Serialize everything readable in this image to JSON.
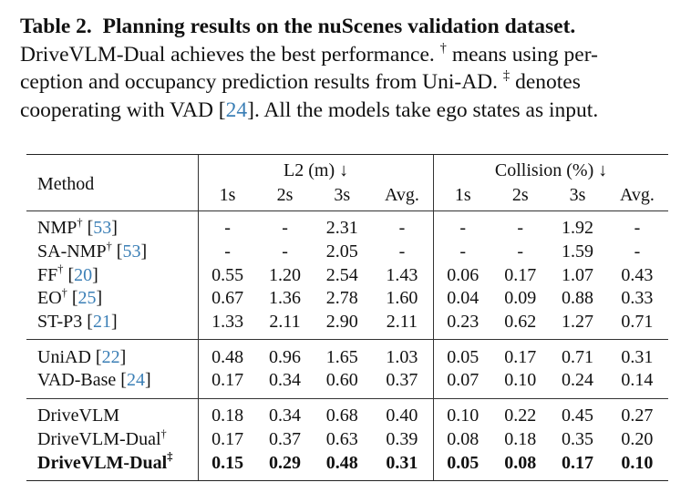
{
  "caption": {
    "label": "Table 2.",
    "title": "Planning results on the nuScenes validation dataset.",
    "line2_a": "DriveVLM-Dual achieves the best performance.",
    "dagger": "†",
    "line2_b": "means using per-",
    "line3_a": "ception and occupancy prediction results from Uni-AD.",
    "ddagger": "‡",
    "line3_b": "denotes",
    "line4_a": "cooperating with VAD [",
    "line4_ref": "24",
    "line4_b": "]. All the models take ego states as input."
  },
  "table": {
    "method_header": "Method",
    "group1": "L2 (m) ↓",
    "group2": "Collision (%) ↓",
    "subcols": [
      "1s",
      "2s",
      "3s",
      "Avg.",
      "1s",
      "2s",
      "3s",
      "Avg."
    ],
    "rows": [
      {
        "name": "NMP",
        "sup": "†",
        "ref": "53",
        "vals": [
          "-",
          "-",
          "2.31",
          "-",
          "-",
          "-",
          "1.92",
          "-"
        ]
      },
      {
        "name": "SA-NMP",
        "sup": "†",
        "ref": "53",
        "vals": [
          "-",
          "-",
          "2.05",
          "-",
          "-",
          "-",
          "1.59",
          "-"
        ]
      },
      {
        "name": "FF",
        "sup": "†",
        "ref": "20",
        "vals": [
          "0.55",
          "1.20",
          "2.54",
          "1.43",
          "0.06",
          "0.17",
          "1.07",
          "0.43"
        ]
      },
      {
        "name": "EO",
        "sup": "†",
        "ref": "25",
        "vals": [
          "0.67",
          "1.36",
          "2.78",
          "1.60",
          "0.04",
          "0.09",
          "0.88",
          "0.33"
        ]
      },
      {
        "name": "ST-P3",
        "sup": "",
        "ref": "21",
        "vals": [
          "1.33",
          "2.11",
          "2.90",
          "2.11",
          "0.23",
          "0.62",
          "1.27",
          "0.71"
        ]
      },
      {
        "name": "UniAD",
        "sup": "",
        "ref": "22",
        "vals": [
          "0.48",
          "0.96",
          "1.65",
          "1.03",
          "0.05",
          "0.17",
          "0.71",
          "0.31"
        ]
      },
      {
        "name": "VAD-Base",
        "sup": "",
        "ref": "24",
        "vals": [
          "0.17",
          "0.34",
          "0.60",
          "0.37",
          "0.07",
          "0.10",
          "0.24",
          "0.14"
        ]
      },
      {
        "name": "DriveVLM",
        "sup": "",
        "ref": "",
        "vals": [
          "0.18",
          "0.34",
          "0.68",
          "0.40",
          "0.10",
          "0.22",
          "0.45",
          "0.27"
        ]
      },
      {
        "name": "DriveVLM-Dual",
        "sup": "†",
        "ref": "",
        "vals": [
          "0.17",
          "0.37",
          "0.63",
          "0.39",
          "0.08",
          "0.18",
          "0.35",
          "0.20"
        ]
      },
      {
        "name": "DriveVLM-Dual",
        "sup": "‡",
        "ref": "",
        "vals": [
          "0.15",
          "0.29",
          "0.48",
          "0.31",
          "0.05",
          "0.08",
          "0.17",
          "0.10"
        ]
      }
    ]
  }
}
